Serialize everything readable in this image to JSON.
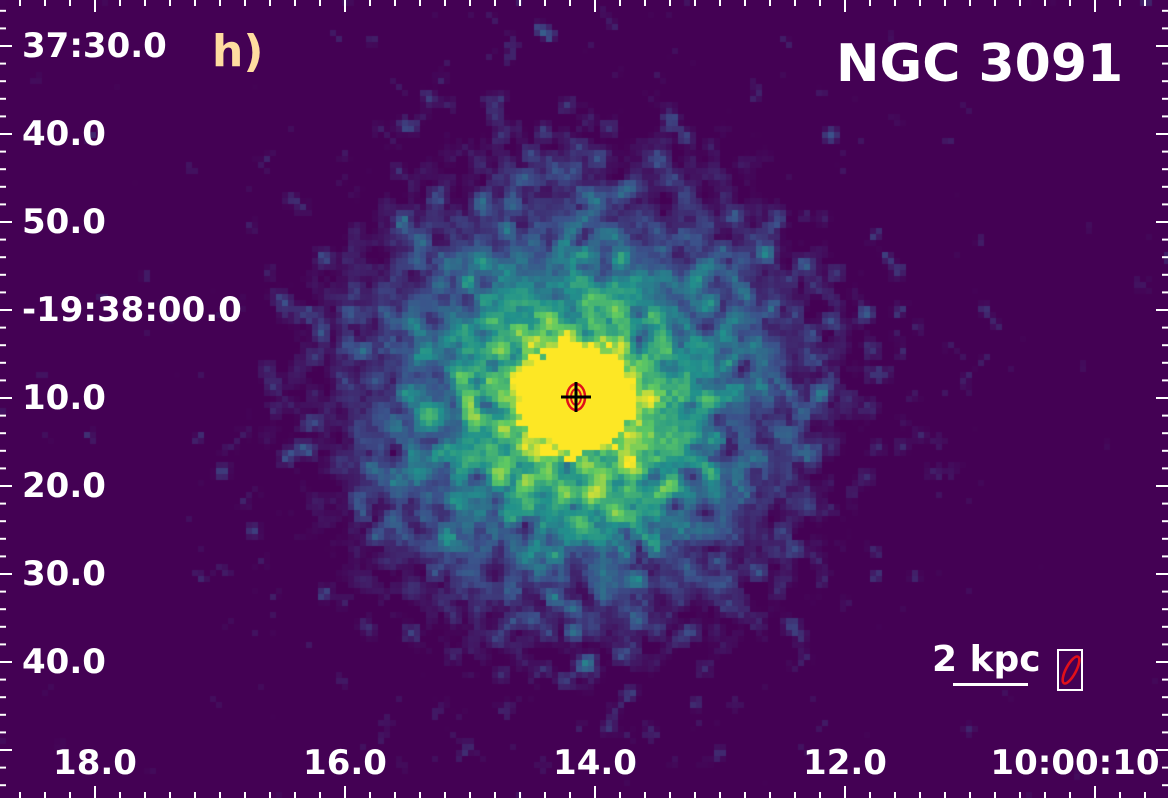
{
  "figure": {
    "panel_letter": "h)",
    "object_name": "NGC 3091",
    "colormap": "viridis",
    "colors": {
      "background": "#440154",
      "core": "#fde725",
      "panel_letter": "#ffdca0",
      "text": "#ffffff",
      "contour": "#e0101a",
      "marker": "#000000"
    },
    "dec_ticks": [
      "37:30.0",
      "40.0",
      "50.0",
      "-19:38:00.0",
      "10.0",
      "20.0",
      "30.0",
      "40.0"
    ],
    "ra_ticks": [
      "18.0",
      "16.0",
      "14.0",
      "12.0",
      "10:00:10"
    ],
    "scale_bar_label": "2 kpc",
    "marker_icon": "crosshair-icon",
    "beam_icon": "beam-ellipse-icon"
  }
}
